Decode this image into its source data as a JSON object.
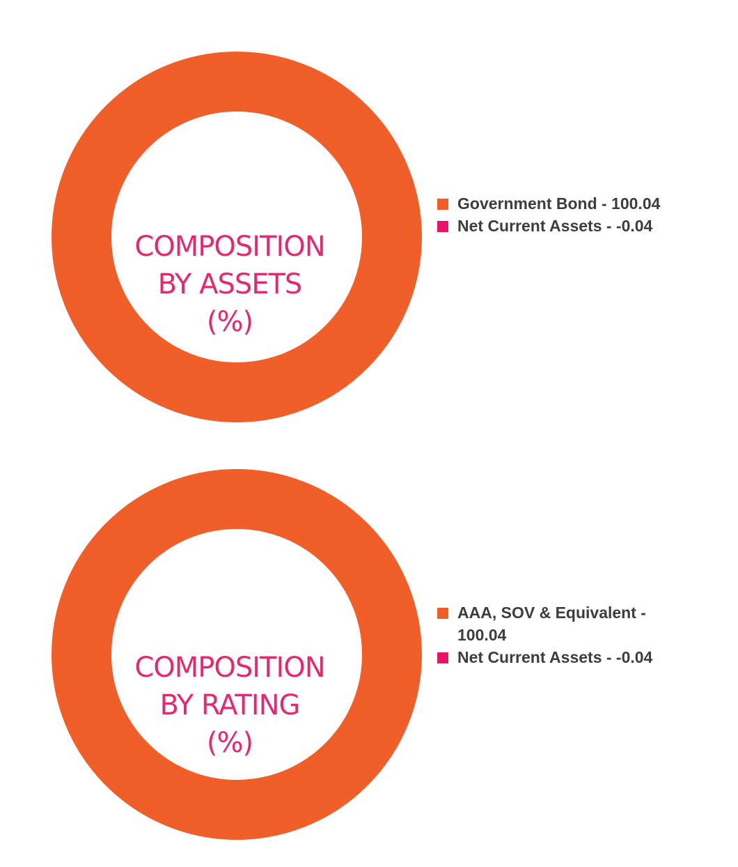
{
  "chart_data": [
    {
      "type": "pie",
      "title": "COMPOSITION BY ASSETS (%)",
      "title_lines": [
        "COMPOSITION",
        "BY ASSETS",
        "(%)"
      ],
      "slices": [
        {
          "label": "Government Bond - 100.04",
          "name": "Government Bond",
          "value": 100.04,
          "color": "#f05f2a"
        },
        {
          "label": "Net Current Assets - -0.04",
          "name": "Net Current Assets",
          "value": -0.04,
          "color": "#e8146b"
        }
      ],
      "legend_position": "right"
    },
    {
      "type": "pie",
      "title": "COMPOSITION BY RATING (%)",
      "title_lines": [
        "COMPOSITION",
        "BY RATING",
        "(%)"
      ],
      "slices": [
        {
          "label": "AAA, SOV & Equivalent - 100.04",
          "name": "AAA, SOV & Equivalent",
          "value": 100.04,
          "color": "#f05f2a"
        },
        {
          "label": "Net Current Assets - -0.04",
          "name": "Net Current Assets",
          "value": -0.04,
          "color": "#e8146b"
        }
      ],
      "legend_position": "right"
    }
  ]
}
